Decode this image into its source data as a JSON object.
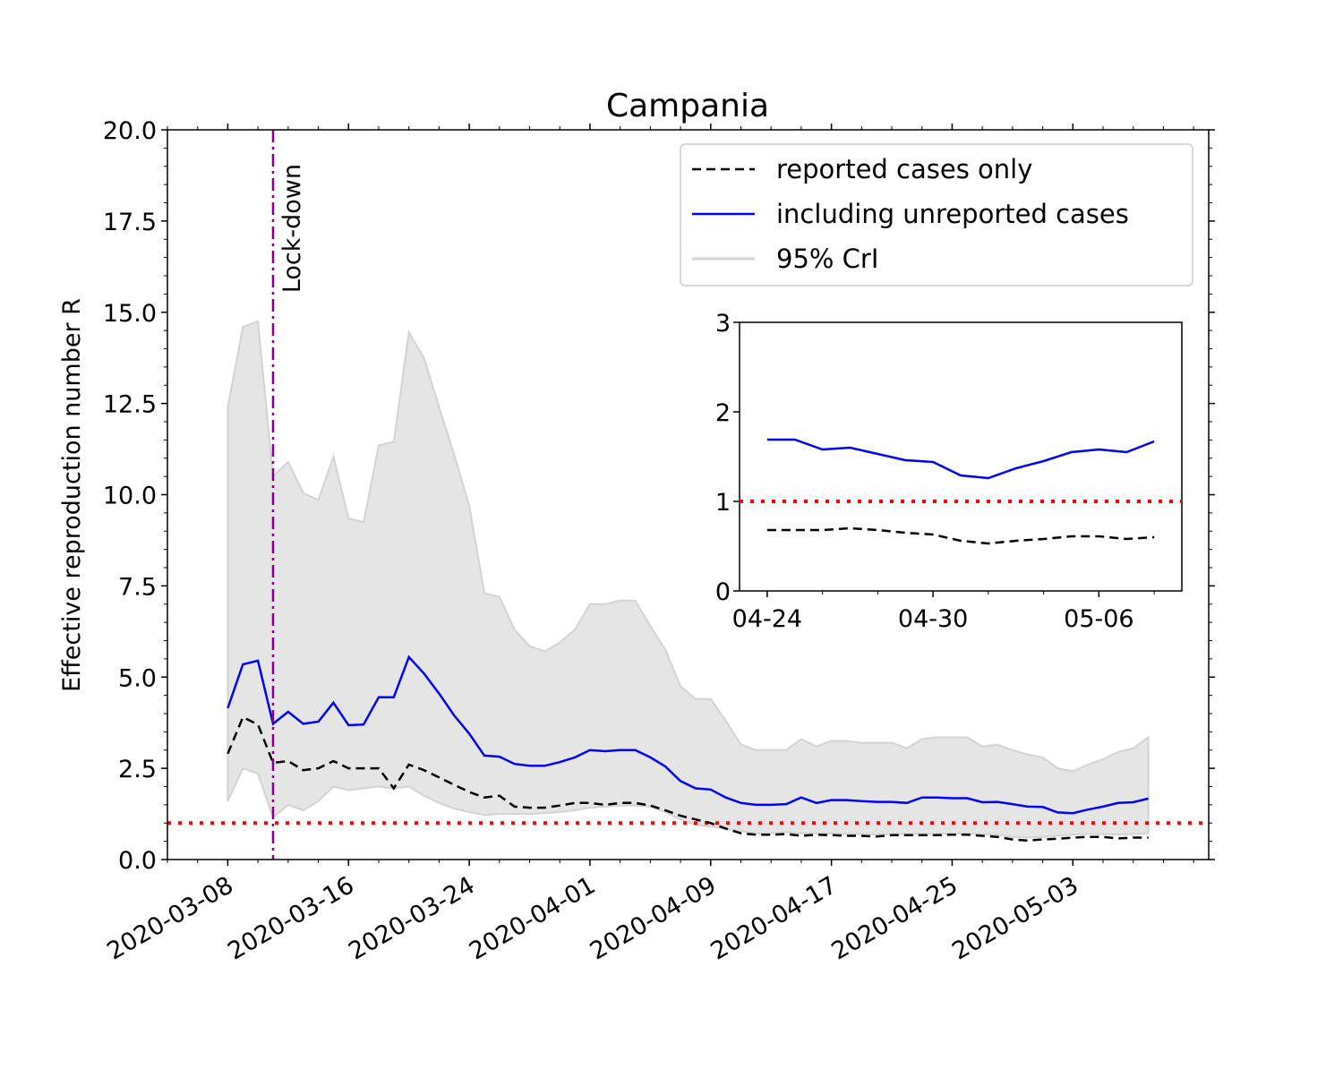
{
  "chart_data": [
    {
      "type": "line",
      "title": "Campania",
      "xlabel": "",
      "ylabel": "Effective reproduction number R",
      "ylim": [
        0,
        20
      ],
      "xlim": [
        "2020-03-04",
        "2020-05-12"
      ],
      "yticks": [
        "0.0",
        "2.5",
        "5.0",
        "7.5",
        "10.0",
        "12.5",
        "15.0",
        "17.5",
        "20.0"
      ],
      "xticks": [
        "2020-03-08",
        "2020-03-16",
        "2020-03-24",
        "2020-04-01",
        "2020-04-09",
        "2020-04-17",
        "2020-04-25",
        "2020-05-03"
      ],
      "grid": false,
      "legend_position": "top-right",
      "dates": [
        "2020-03-08",
        "2020-03-09",
        "2020-03-10",
        "2020-03-11",
        "2020-03-12",
        "2020-03-13",
        "2020-03-14",
        "2020-03-15",
        "2020-03-16",
        "2020-03-17",
        "2020-03-18",
        "2020-03-19",
        "2020-03-20",
        "2020-03-21",
        "2020-03-22",
        "2020-03-23",
        "2020-03-24",
        "2020-03-25",
        "2020-03-26",
        "2020-03-27",
        "2020-03-28",
        "2020-03-29",
        "2020-03-30",
        "2020-03-31",
        "2020-04-01",
        "2020-04-02",
        "2020-04-03",
        "2020-04-04",
        "2020-04-05",
        "2020-04-06",
        "2020-04-07",
        "2020-04-08",
        "2020-04-09",
        "2020-04-10",
        "2020-04-11",
        "2020-04-12",
        "2020-04-13",
        "2020-04-14",
        "2020-04-15",
        "2020-04-16",
        "2020-04-17",
        "2020-04-18",
        "2020-04-19",
        "2020-04-20",
        "2020-04-21",
        "2020-04-22",
        "2020-04-23",
        "2020-04-24",
        "2020-04-25",
        "2020-04-26",
        "2020-04-27",
        "2020-04-28",
        "2020-04-29",
        "2020-04-30",
        "2020-05-01",
        "2020-05-02",
        "2020-05-03",
        "2020-05-04",
        "2020-05-05",
        "2020-05-06",
        "2020-05-07",
        "2020-05-08"
      ],
      "series": [
        {
          "name": "reported cases only",
          "color": "#000000",
          "style": "dashed",
          "values": [
            2.9,
            3.9,
            3.7,
            2.65,
            2.7,
            2.45,
            2.5,
            2.7,
            2.5,
            2.5,
            2.5,
            1.95,
            2.6,
            2.45,
            2.25,
            2.05,
            1.85,
            1.7,
            1.75,
            1.45,
            1.42,
            1.42,
            1.48,
            1.55,
            1.55,
            1.5,
            1.55,
            1.55,
            1.48,
            1.35,
            1.2,
            1.1,
            1.0,
            0.85,
            0.72,
            0.68,
            0.68,
            0.7,
            0.65,
            0.68,
            0.67,
            0.65,
            0.65,
            0.63,
            0.67,
            0.67,
            0.67,
            0.67,
            0.68,
            0.68,
            0.65,
            0.62,
            0.55,
            0.52,
            0.55,
            0.57,
            0.6,
            0.62,
            0.62,
            0.58,
            0.6,
            0.6
          ]
        },
        {
          "name": "including unreported cases",
          "color": "#0000ff",
          "style": "solid",
          "values": [
            4.15,
            5.35,
            5.45,
            3.72,
            4.05,
            3.72,
            3.78,
            4.3,
            3.68,
            3.7,
            4.45,
            4.45,
            5.55,
            5.1,
            4.55,
            3.95,
            3.45,
            2.85,
            2.82,
            2.62,
            2.57,
            2.57,
            2.67,
            2.8,
            3.0,
            2.97,
            3.0,
            3.0,
            2.8,
            2.55,
            2.15,
            1.95,
            1.92,
            1.7,
            1.55,
            1.5,
            1.5,
            1.52,
            1.7,
            1.55,
            1.63,
            1.63,
            1.6,
            1.58,
            1.58,
            1.55,
            1.7,
            1.7,
            1.68,
            1.68,
            1.57,
            1.58,
            1.52,
            1.45,
            1.44,
            1.29,
            1.27,
            1.37,
            1.45,
            1.55,
            1.57,
            1.67
          ]
        }
      ],
      "band": {
        "name": "95% CrI",
        "color": "#d3d3d3",
        "lower": [
          1.6,
          2.5,
          2.35,
          1.15,
          1.5,
          1.35,
          1.6,
          2.0,
          1.9,
          1.95,
          2.0,
          1.95,
          2.0,
          1.75,
          1.55,
          1.4,
          1.3,
          1.22,
          1.25,
          1.25,
          1.25,
          1.27,
          1.3,
          1.35,
          1.42,
          1.45,
          1.48,
          1.48,
          1.45,
          1.3,
          1.1,
          0.95,
          0.9,
          0.85,
          0.78,
          0.72,
          0.72,
          0.75,
          0.72,
          0.72,
          0.72,
          0.7,
          0.7,
          0.68,
          0.7,
          0.7,
          0.7,
          0.7,
          0.72,
          0.72,
          0.7,
          0.68,
          0.62,
          0.6,
          0.62,
          0.65,
          0.68,
          0.7,
          0.7,
          0.68,
          0.7,
          0.72
        ],
        "upper": [
          12.4,
          14.6,
          14.75,
          10.5,
          10.9,
          10.05,
          9.85,
          11.05,
          9.35,
          9.25,
          11.35,
          11.45,
          14.45,
          13.75,
          12.4,
          11.1,
          9.7,
          7.3,
          7.2,
          6.3,
          5.85,
          5.7,
          5.95,
          6.3,
          7.0,
          7.0,
          7.1,
          7.1,
          6.4,
          5.75,
          4.75,
          4.4,
          4.4,
          3.8,
          3.15,
          3.0,
          3.0,
          3.0,
          3.3,
          3.1,
          3.25,
          3.25,
          3.2,
          3.2,
          3.2,
          3.05,
          3.3,
          3.35,
          3.35,
          3.35,
          3.1,
          3.15,
          3.0,
          2.88,
          2.8,
          2.5,
          2.42,
          2.6,
          2.75,
          2.95,
          3.05,
          3.35
        ]
      },
      "reference_line": {
        "y": 1.0,
        "color": "#ff0000",
        "style": "dotted"
      },
      "event": {
        "date": "2020-03-11",
        "label": "Lock-down",
        "color": "#800080",
        "style": "dashdot"
      }
    },
    {
      "type": "line",
      "title": "",
      "ylim": [
        0,
        3
      ],
      "xlim": [
        "2020-04-23",
        "2020-05-09"
      ],
      "yticks": [
        "0",
        "1",
        "2",
        "3"
      ],
      "xticks": [
        "04-24",
        "04-30",
        "05-06"
      ],
      "dates": [
        "2020-04-24",
        "2020-04-25",
        "2020-04-26",
        "2020-04-27",
        "2020-04-28",
        "2020-04-29",
        "2020-04-30",
        "2020-05-01",
        "2020-05-02",
        "2020-05-03",
        "2020-05-04",
        "2020-05-05",
        "2020-05-06",
        "2020-05-07",
        "2020-05-08"
      ],
      "series": [
        {
          "name": "including unreported cases",
          "color": "#0000ff",
          "style": "solid",
          "values": [
            1.69,
            1.69,
            1.58,
            1.6,
            1.53,
            1.46,
            1.44,
            1.29,
            1.26,
            1.37,
            1.45,
            1.55,
            1.58,
            1.55,
            1.67
          ]
        },
        {
          "name": "reported cases only",
          "color": "#000000",
          "style": "dashed",
          "values": [
            0.68,
            0.68,
            0.68,
            0.7,
            0.68,
            0.65,
            0.63,
            0.56,
            0.53,
            0.56,
            0.58,
            0.61,
            0.61,
            0.58,
            0.6
          ]
        }
      ],
      "reference_line": {
        "y": 1.0,
        "color": "#ff0000",
        "style": "dotted"
      }
    }
  ]
}
